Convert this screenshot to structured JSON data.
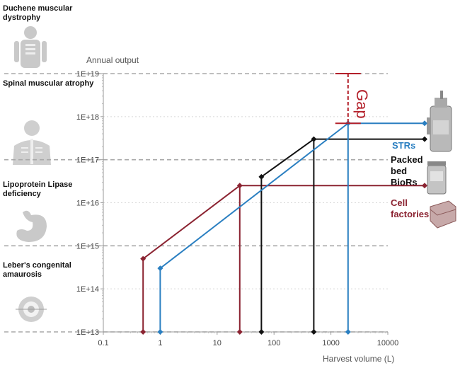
{
  "chart_data": {
    "type": "line",
    "ylabel": "Annual output",
    "xlabel": "Harvest volume (L)",
    "x_scale": "log",
    "y_scale": "log",
    "xlim": [
      0.1,
      10000
    ],
    "ylim": [
      10000000000000.0,
      1e+19
    ],
    "x_ticks": [
      "0.1",
      "1",
      "10",
      "100",
      "1000",
      "10000"
    ],
    "y_ticks": [
      "1E+13",
      "1E+14",
      "1E+15",
      "1E+16",
      "1E+17",
      "1E+18",
      "1E+19"
    ],
    "diseases": [
      {
        "label": "Duchene muscular dystrophy",
        "icon": "full-body-figure-icon",
        "dose_line": 1e+19
      },
      {
        "label": "Spinal muscular atrophy",
        "icon": "upper-body-spine-icon",
        "dose_line": 1e+17
      },
      {
        "label": "Lipoprotein Lipase deficiency",
        "icon": "organ-icon",
        "dose_line": 1000000000000000.0
      },
      {
        "label": "Leber's congenital amaurosis",
        "icon": "eye-icon",
        "dose_line": 10000000000000.0
      }
    ],
    "series": [
      {
        "name": "Cell factories",
        "color": "#8b2331",
        "x": [
          0.5,
          25
        ],
        "y": [
          500000000000000.0,
          2.5e+16
        ],
        "max_output": 2.5e+16
      },
      {
        "name": "Packed bed BioRs",
        "color": "#111111",
        "x": [
          60,
          500
        ],
        "y": [
          4e+16,
          3e+17
        ],
        "max_output": 3e+17
      },
      {
        "name": "STRs",
        "color": "#2a7fc1",
        "x": [
          1,
          2000
        ],
        "y": [
          300000000000000.0,
          7e+17
        ],
        "max_output": 7e+17
      }
    ],
    "annotation": {
      "label": "Gap",
      "color": "#b3202a",
      "x": 2000,
      "y_from": 7e+17,
      "y_to": 1e+19
    }
  },
  "colors": {
    "grid": "#aaaaaa",
    "axis": "#999999",
    "gap": "#b3202a"
  }
}
